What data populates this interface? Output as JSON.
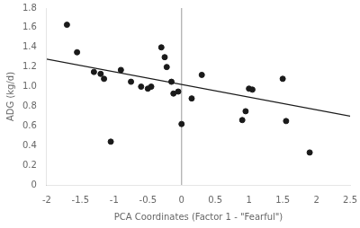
{
  "chart_data": {
    "type": "scatter",
    "x_label": "PCA Coordinates (Factor 1 - \"Fearful\")",
    "y_label": "ADG (kg/d)",
    "series": [
      {
        "type": "scatter",
        "color": "#1a1a1a",
        "x": [
          -1.7,
          -1.55,
          -1.3,
          -1.2,
          -1.15,
          -1.05,
          -0.9,
          -0.75,
          -0.6,
          -0.5,
          -0.45,
          -0.3,
          -0.25,
          -0.22,
          -0.15,
          -0.12,
          -0.05,
          0.0,
          0.15,
          0.3,
          0.9,
          0.95,
          1.0,
          1.05,
          1.5,
          1.55,
          1.9
        ],
        "values": [
          1.63,
          1.35,
          1.15,
          1.13,
          1.08,
          0.44,
          1.17,
          1.05,
          1.0,
          0.98,
          1.0,
          1.4,
          1.3,
          1.2,
          1.05,
          0.93,
          0.95,
          0.62,
          0.88,
          1.12,
          0.66,
          0.75,
          0.98,
          0.97,
          1.08,
          0.65,
          0.33
        ]
      },
      {
        "type": "line",
        "color": "#1a1a1a",
        "x": [
          -2.0,
          2.5
        ],
        "values": [
          1.28,
          0.7
        ]
      },
      {
        "type": "line",
        "color": "#aaaaaa",
        "x": [
          0.0,
          0.0
        ],
        "values": [
          0.0,
          1.8
        ]
      }
    ],
    "xlim": [
      -2.0,
      2.5
    ],
    "ylim": [
      0.0,
      1.8
    ],
    "xticks": [
      -2,
      -1.5,
      -1,
      -0.5,
      0,
      0.5,
      1,
      1.5,
      2,
      2.5
    ],
    "yticks": [
      0,
      0.2,
      0.4,
      0.6,
      0.8,
      {
        "value": 1,
        "label": "1.0"
      },
      1.2,
      1.4,
      1.6,
      1.8
    ],
    "grid": false
  }
}
